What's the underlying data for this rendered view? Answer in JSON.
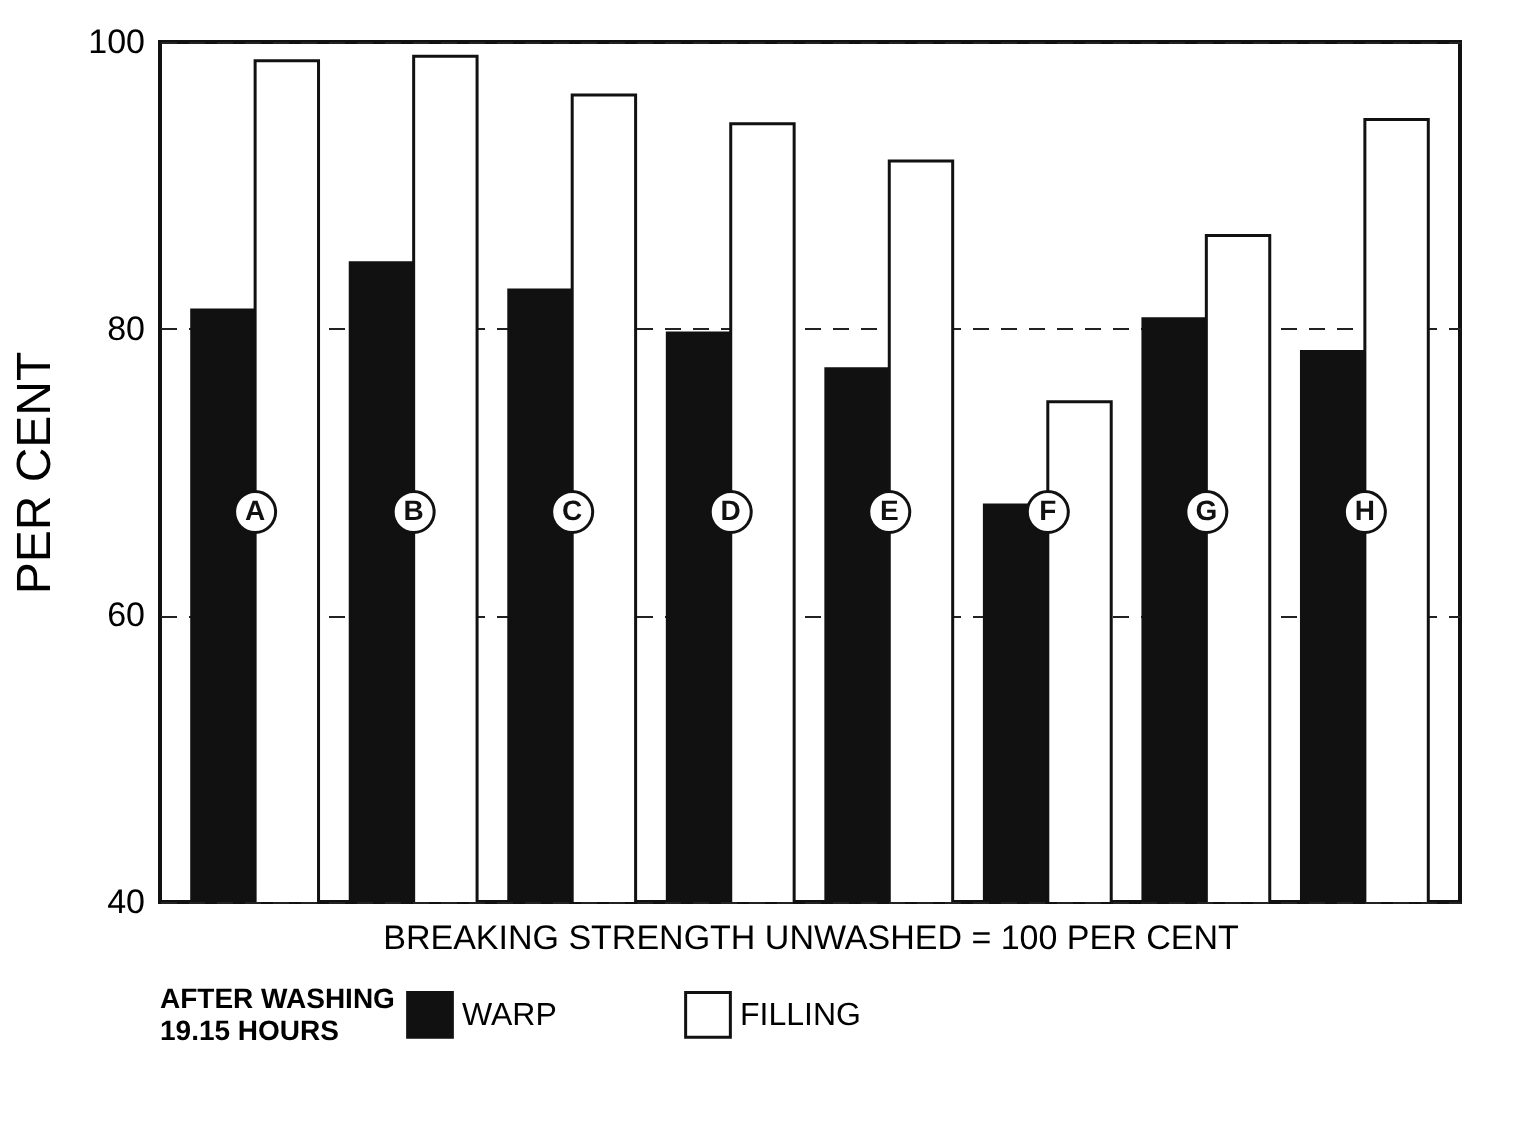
{
  "chart_data": {
    "type": "bar",
    "xlabel": "BREAKING STRENGTH UNWASHED = 100 PER CENT",
    "ylabel": "PER CENT",
    "legend_title": "AFTER WASHING\n19.15 HOURS",
    "categories": [
      "A",
      "B",
      "C",
      "D",
      "E",
      "F",
      "G",
      "H"
    ],
    "series": [
      {
        "name": "WARP",
        "color": "#111111",
        "values": [
          81.3,
          84.6,
          82.7,
          79.7,
          77.2,
          67.7,
          80.7,
          78.4
        ]
      },
      {
        "name": "FILLING",
        "color": "#ffffff",
        "values": [
          98.7,
          99,
          96.3,
          94.3,
          91.7,
          74.9,
          86.5,
          94.6
        ]
      }
    ],
    "ylim": [
      40,
      100
    ],
    "yticks": [
      40,
      60,
      80,
      100
    ],
    "grid": "y",
    "legend": "bottom"
  }
}
